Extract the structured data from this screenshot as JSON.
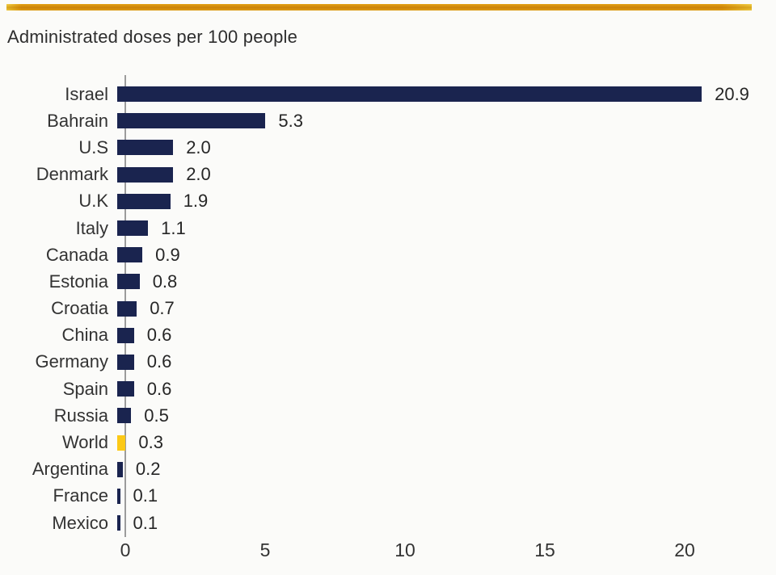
{
  "header": {
    "title": "Administrated doses per 100 people"
  },
  "colors": {
    "bar": "#1a244f",
    "highlight": "#fcc916",
    "stripe": "#eec53a",
    "axis": "#9c9c9c",
    "text": "#333333"
  },
  "chart_data": {
    "type": "bar",
    "orientation": "horizontal",
    "title": "Administrated doses per 100 people",
    "categories": [
      "Israel",
      "Bahrain",
      "U.S",
      "Denmark",
      "U.K",
      "Italy",
      "Canada",
      "Estonia",
      "Croatia",
      "China",
      "Germany",
      "Spain",
      "Russia",
      "World",
      "Argentina",
      "France",
      "Mexico"
    ],
    "values": [
      20.9,
      5.3,
      2.0,
      2.0,
      1.9,
      1.1,
      0.9,
      0.8,
      0.7,
      0.6,
      0.6,
      0.6,
      0.5,
      0.3,
      0.2,
      0.1,
      0.1
    ],
    "value_labels": [
      "20.9",
      "5.3",
      "2.0",
      "2.0",
      "1.9",
      "1.1",
      "0.9",
      "0.8",
      "0.7",
      "0.6",
      "0.6",
      "0.6",
      "0.5",
      "0.3",
      "0.2",
      "0.1",
      "0.1"
    ],
    "highlight_category": "World",
    "x_ticks": [
      0,
      5,
      10,
      15,
      20
    ],
    "x_tick_labels": [
      "0",
      "5",
      "10",
      "15",
      "20"
    ],
    "xlim": [
      0,
      23.2
    ],
    "xlabel": "",
    "ylabel": "",
    "grid": false,
    "legend": "none"
  }
}
